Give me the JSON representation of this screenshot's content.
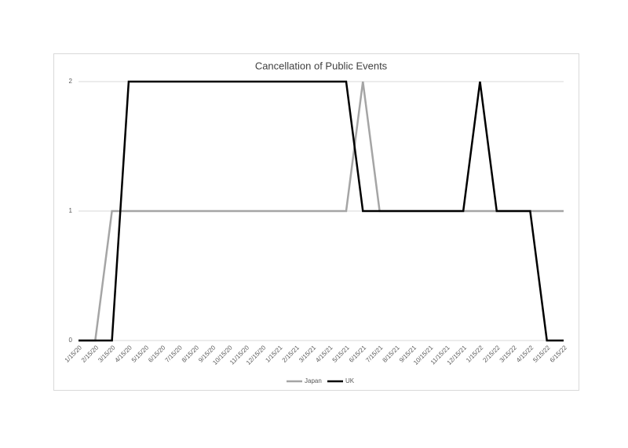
{
  "chart_data": {
    "type": "line",
    "title": "Cancellation of Public Events",
    "categories": [
      "1/15/20",
      "2/15/20",
      "3/15/20",
      "4/15/20",
      "5/15/20",
      "6/15/20",
      "7/15/20",
      "8/15/20",
      "9/15/20",
      "10/15/20",
      "11/15/20",
      "12/15/20",
      "1/15/21",
      "2/15/21",
      "3/15/21",
      "4/15/21",
      "5/15/21",
      "6/15/21",
      "7/15/21",
      "8/15/21",
      "9/15/21",
      "10/15/21",
      "11/15/21",
      "12/15/21",
      "1/15/22",
      "2/15/22",
      "3/15/22",
      "4/15/22",
      "5/15/22",
      "6/15/22"
    ],
    "series": [
      {
        "name": "Japan",
        "color": "#a5a5a5",
        "values": [
          0,
          0,
          1,
          1,
          1,
          1,
          1,
          1,
          1,
          1,
          1,
          1,
          1,
          1,
          1,
          1,
          1,
          2,
          1,
          1,
          1,
          1,
          1,
          1,
          1,
          1,
          1,
          1,
          1,
          1
        ]
      },
      {
        "name": "UK",
        "color": "#000000",
        "values": [
          0,
          0,
          0,
          2,
          2,
          2,
          2,
          2,
          2,
          2,
          2,
          2,
          2,
          2,
          2,
          2,
          2,
          1,
          1,
          1,
          1,
          1,
          1,
          1,
          2,
          1,
          1,
          1,
          0,
          0
        ]
      }
    ],
    "ylim": [
      0,
      2
    ],
    "yticks": [
      0,
      1,
      2
    ],
    "grid": true,
    "legend": "bottom"
  }
}
